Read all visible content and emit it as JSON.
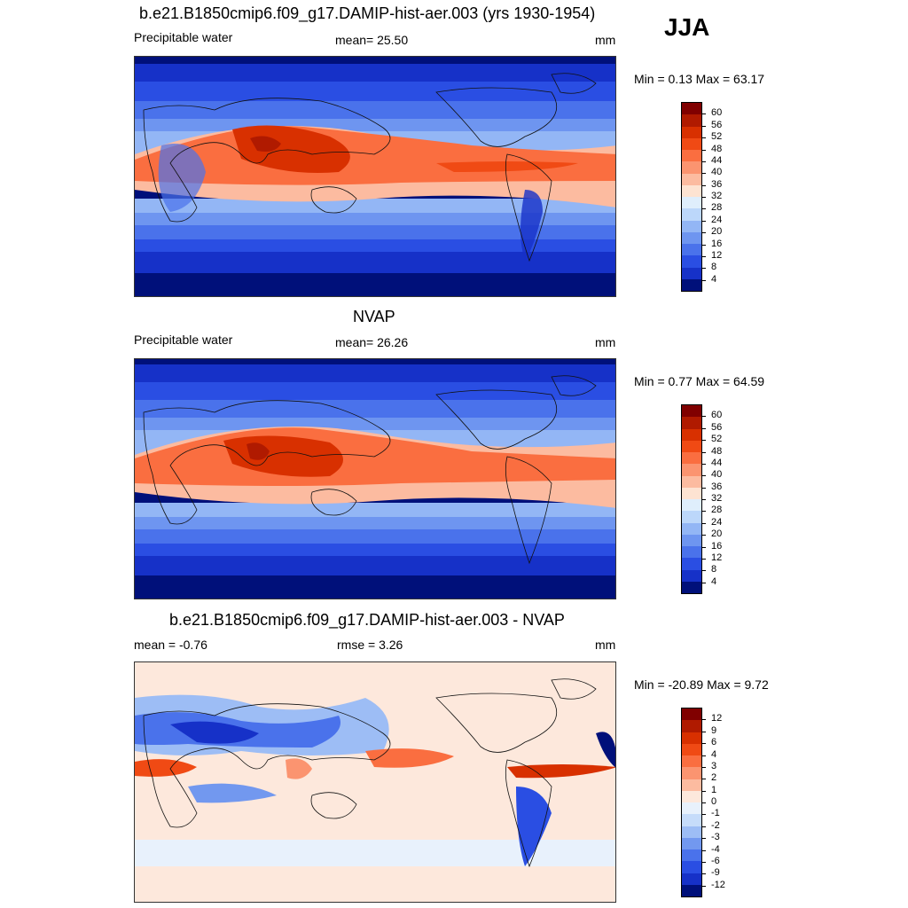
{
  "season": "JJA",
  "panels": [
    {
      "id": "model",
      "title": "b.e21.B1850cmip6.f09_g17.DAMIP-hist-aer.003 (yrs 1930-1954)",
      "left_label": "Precipitable water",
      "center_label": "mean=  25.50",
      "units": "mm",
      "minmax": "Min =   0.13 Max =  63.17",
      "colorbar": {
        "labels": [
          "60",
          "56",
          "52",
          "48",
          "44",
          "40",
          "36",
          "32",
          "28",
          "24",
          "20",
          "16",
          "12",
          "8",
          "4"
        ],
        "colors": [
          "#800000",
          "#b01a00",
          "#d83000",
          "#f04a14",
          "#fa6e40",
          "#fb9470",
          "#fcbba0",
          "#fde3d2",
          "#dfeefc",
          "#bcd7fa",
          "#93b6f5",
          "#6e95f0",
          "#4a72eb",
          "#2a4ee3",
          "#1631c8",
          "#00107a"
        ]
      }
    },
    {
      "id": "obs",
      "title": "NVAP",
      "left_label": "Precipitable water",
      "center_label": "mean=  26.26",
      "units": "mm",
      "minmax": "Min =   0.77 Max =  64.59",
      "colorbar": {
        "labels": [
          "60",
          "56",
          "52",
          "48",
          "44",
          "40",
          "36",
          "32",
          "28",
          "24",
          "20",
          "16",
          "12",
          "8",
          "4"
        ],
        "colors": [
          "#800000",
          "#b01a00",
          "#d83000",
          "#f04a14",
          "#fa6e40",
          "#fb9470",
          "#fcbba0",
          "#fde3d2",
          "#dfeefc",
          "#bcd7fa",
          "#93b6f5",
          "#6e95f0",
          "#4a72eb",
          "#2a4ee3",
          "#1631c8",
          "#00107a"
        ]
      }
    },
    {
      "id": "diff",
      "title": "b.e21.B1850cmip6.f09_g17.DAMIP-hist-aer.003 - NVAP",
      "left_label": "mean =  -0.76",
      "center_label": "rmse =   3.26",
      "units": "mm",
      "minmax": "Min = -20.89 Max =   9.72",
      "colorbar": {
        "labels": [
          "12",
          "9",
          "6",
          "4",
          "3",
          "2",
          "1",
          "0",
          "-1",
          "-2",
          "-3",
          "-4",
          "-6",
          "-9",
          "-12"
        ],
        "colors": [
          "#800000",
          "#b01a00",
          "#d83000",
          "#f04a14",
          "#fa6e40",
          "#fb9470",
          "#fcbba0",
          "#fde8dc",
          "#e8f1fc",
          "#c6dcfa",
          "#9dbdf5",
          "#7298ef",
          "#4a72eb",
          "#2a4ee3",
          "#1631c8",
          "#00107a"
        ]
      }
    }
  ]
}
